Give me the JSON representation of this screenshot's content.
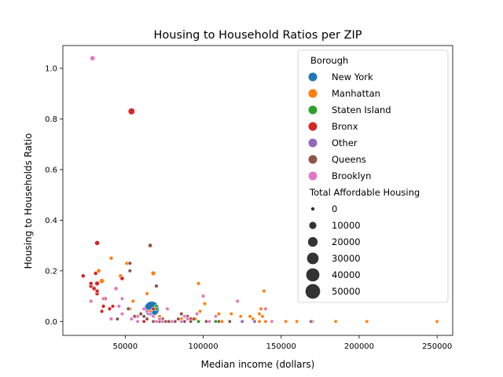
{
  "chart_data": {
    "type": "scatter",
    "title": "Housing to Household Ratios per ZIP",
    "xlabel": "Median income (dollars)",
    "ylabel": "Housing to Households Ratio",
    "xlim": [
      10000,
      260000
    ],
    "ylim": [
      -0.055,
      1.09
    ],
    "xticks": [
      50000,
      100000,
      150000,
      200000,
      250000
    ],
    "xtick_labels": [
      "50000",
      "100000",
      "150000",
      "200000",
      "250000"
    ],
    "yticks": [
      0.0,
      0.2,
      0.4,
      0.6,
      0.8,
      1.0
    ],
    "ytick_labels": [
      "0.0",
      "0.2",
      "0.4",
      "0.6",
      "0.8",
      "1.0"
    ],
    "grid": false,
    "legend_placement": "upper-right",
    "hue_title": "Borough",
    "size_title": "Total Affordable Housing",
    "series": [
      {
        "name": "New York",
        "color": "#1f77b4",
        "points": [
          [
            67000,
            0.05,
            52000
          ]
        ]
      },
      {
        "name": "Manhattan",
        "color": "#ff7f0e",
        "points": [
          [
            33000,
            0.2,
            1500
          ],
          [
            35000,
            0.16,
            3000
          ],
          [
            41000,
            0.25,
            800
          ],
          [
            47000,
            0.18,
            1200
          ],
          [
            51000,
            0.23,
            600
          ],
          [
            55000,
            0.08,
            400
          ],
          [
            53000,
            0.05,
            300
          ],
          [
            57000,
            0.02,
            200
          ],
          [
            64000,
            0.11,
            500
          ],
          [
            68000,
            0.19,
            2500
          ],
          [
            66000,
            0.04,
            300
          ],
          [
            72000,
            0.02,
            200
          ],
          [
            74000,
            0.0,
            100
          ],
          [
            78000,
            0.0,
            100
          ],
          [
            82000,
            0.0,
            100
          ],
          [
            86000,
            0.01,
            100
          ],
          [
            92000,
            0.0,
            100
          ],
          [
            95000,
            0.01,
            200
          ],
          [
            97000,
            0.15,
            400
          ],
          [
            101000,
            0.07,
            500
          ],
          [
            98000,
            0.04,
            300
          ],
          [
            103000,
            0.0,
            100
          ],
          [
            108000,
            0.02,
            200
          ],
          [
            110000,
            0.03,
            150
          ],
          [
            112000,
            0.0,
            100
          ],
          [
            118000,
            0.03,
            100
          ],
          [
            124000,
            0.02,
            100
          ],
          [
            130000,
            0.02,
            100
          ],
          [
            132000,
            0.01,
            100
          ],
          [
            136000,
            0.03,
            150
          ],
          [
            137000,
            0.05,
            200
          ],
          [
            139000,
            0.12,
            300
          ],
          [
            140000,
            0.0,
            100
          ],
          [
            138000,
            0.02,
            100
          ],
          [
            136000,
            0.0,
            100
          ],
          [
            153000,
            0.0,
            100
          ],
          [
            170000,
            0.0,
            100
          ],
          [
            185000,
            0.0,
            100
          ],
          [
            205000,
            0.0,
            100
          ],
          [
            250000,
            0.0,
            100
          ],
          [
            125000,
            0.0,
            100
          ],
          [
            160000,
            0.0,
            100
          ]
        ]
      },
      {
        "name": "Staten Island",
        "color": "#2ca02c",
        "points": [
          [
            70000,
            0.06,
            300
          ],
          [
            70000,
            0.05,
            200
          ],
          [
            97000,
            0.0,
            100
          ],
          [
            108000,
            0.0,
            100
          ],
          [
            110000,
            0.0,
            100
          ]
        ]
      },
      {
        "name": "Bronx",
        "color": "#d62728",
        "points": [
          [
            23000,
            0.18,
            1200
          ],
          [
            28000,
            0.14,
            1500
          ],
          [
            28000,
            0.15,
            1000
          ],
          [
            30000,
            0.13,
            1500
          ],
          [
            32000,
            0.15,
            2500
          ],
          [
            31000,
            0.19,
            1200
          ],
          [
            32000,
            0.11,
            1500
          ],
          [
            32000,
            0.12,
            1000
          ],
          [
            32000,
            0.31,
            3000
          ],
          [
            36000,
            0.09,
            1500
          ],
          [
            37000,
            0.09,
            1000
          ],
          [
            36000,
            0.06,
            800
          ],
          [
            35000,
            0.04,
            600
          ],
          [
            40000,
            0.05,
            700
          ],
          [
            42000,
            0.06,
            500
          ],
          [
            48000,
            0.17,
            1500
          ],
          [
            54000,
            0.83,
            8000
          ],
          [
            62000,
            0.0,
            200
          ],
          [
            68000,
            0.05,
            300
          ],
          [
            92000,
            0.01,
            100
          ]
        ]
      },
      {
        "name": "Other",
        "color": "#9467bd",
        "points": [
          [
            125000,
            0.0,
            100
          ],
          [
            133000,
            0.0,
            100
          ],
          [
            169000,
            0.0,
            100
          ]
        ]
      },
      {
        "name": "Queens",
        "color": "#8c564b",
        "points": [
          [
            45000,
            0.01,
            200
          ],
          [
            52000,
            0.05,
            500
          ],
          [
            53000,
            0.2,
            400
          ],
          [
            53000,
            0.23,
            600
          ],
          [
            56000,
            0.02,
            300
          ],
          [
            58000,
            0.0,
            200
          ],
          [
            60000,
            0.03,
            500
          ],
          [
            62000,
            0.02,
            200
          ],
          [
            64000,
            0.01,
            200
          ],
          [
            66000,
            0.3,
            1500
          ],
          [
            68000,
            0.0,
            100
          ],
          [
            70000,
            0.14,
            800
          ],
          [
            72000,
            0.0,
            100
          ],
          [
            74000,
            0.01,
            100
          ],
          [
            76000,
            0.0,
            100
          ],
          [
            78000,
            0.0,
            100
          ],
          [
            80000,
            0.0,
            100
          ],
          [
            82000,
            0.0,
            100
          ],
          [
            84000,
            0.01,
            100
          ],
          [
            86000,
            0.03,
            300
          ],
          [
            88000,
            0.0,
            100
          ],
          [
            90000,
            0.02,
            200
          ],
          [
            92000,
            0.0,
            100
          ],
          [
            94000,
            0.01,
            100
          ],
          [
            102000,
            0.0,
            100
          ],
          [
            104000,
            0.0,
            100
          ],
          [
            110000,
            0.0,
            100
          ],
          [
            117000,
            0.0,
            100
          ]
        ]
      },
      {
        "name": "Brooklyn",
        "color": "#e377c2",
        "points": [
          [
            29000,
            1.04,
            3000
          ],
          [
            28000,
            0.08,
            800
          ],
          [
            36000,
            0.09,
            600
          ],
          [
            41000,
            0.01,
            400
          ],
          [
            44000,
            0.13,
            1200
          ],
          [
            46000,
            0.06,
            400
          ],
          [
            48000,
            0.09,
            500
          ],
          [
            48000,
            0.03,
            300
          ],
          [
            54000,
            0.01,
            200
          ],
          [
            58000,
            0.02,
            200
          ],
          [
            62000,
            0.05,
            300
          ],
          [
            64000,
            0.04,
            200
          ],
          [
            66000,
            0.03,
            200
          ],
          [
            68000,
            0.02,
            200
          ],
          [
            70000,
            0.0,
            100
          ],
          [
            72000,
            0.01,
            100
          ],
          [
            74000,
            0.0,
            100
          ],
          [
            77000,
            0.05,
            300
          ],
          [
            80000,
            0.0,
            100
          ],
          [
            88000,
            0.02,
            200
          ],
          [
            90000,
            0.01,
            100
          ],
          [
            96000,
            0.03,
            200
          ],
          [
            100000,
            0.1,
            500
          ],
          [
            104000,
            0.0,
            100
          ],
          [
            108000,
            0.02,
            200
          ],
          [
            122000,
            0.08,
            400
          ],
          [
            140000,
            0.05,
            300
          ],
          [
            144000,
            0.0,
            100
          ],
          [
            58000,
            0.0,
            100
          ],
          [
            86000,
            0.0,
            100
          ]
        ]
      }
    ],
    "size_legend": [
      {
        "label": "0",
        "value": 0
      },
      {
        "label": "10000",
        "value": 10000
      },
      {
        "label": "20000",
        "value": 20000
      },
      {
        "label": "30000",
        "value": 30000
      },
      {
        "label": "40000",
        "value": 40000
      },
      {
        "label": "50000",
        "value": 50000
      }
    ]
  }
}
